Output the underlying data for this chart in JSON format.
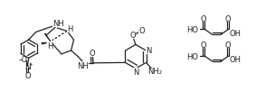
{
  "bg_color": "#ffffff",
  "line_color": "#222222",
  "line_width": 0.9,
  "font_size": 6.0,
  "fig_width": 2.83,
  "fig_height": 1.13,
  "dpi": 100,
  "xlim": [
    0,
    10
  ],
  "ylim": [
    0,
    3.55
  ]
}
